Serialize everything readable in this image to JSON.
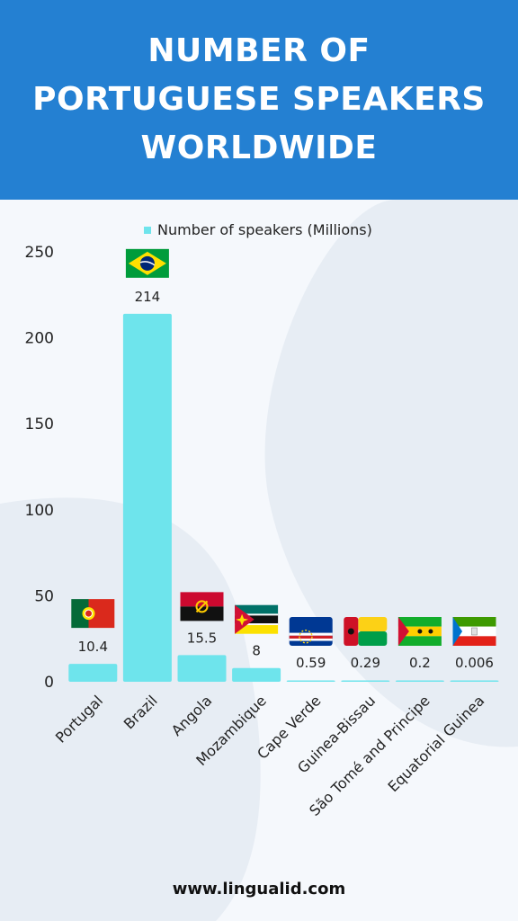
{
  "header": {
    "title": "NUMBER OF\nPORTUGUESE SPEAKERS\nWORLDWIDE"
  },
  "footer": {
    "url": "www.lingualid.com"
  },
  "colors": {
    "header_bg": "#2480d2",
    "bar": "#6ee4ec",
    "page_bg": "#f5f8fc"
  },
  "chart_data": {
    "type": "bar",
    "categories": [
      "Portugal",
      "Brazil",
      "Angola",
      "Mozambique",
      "Cape Verde",
      "Guinea-Bissau",
      "São Tomé and Principe",
      "Equatorial Guinea"
    ],
    "series": [
      {
        "name": "Number of speakers (Millions)",
        "values": [
          10.4,
          214,
          15.5,
          8,
          0.59,
          0.29,
          0.2,
          0.006
        ]
      }
    ],
    "data_labels": [
      "10.4",
      "214",
      "15.5",
      "8",
      "0.59",
      "0.29",
      "0.2",
      "0.006"
    ],
    "flags": [
      "portugal-flag",
      "brazil-flag",
      "angola-flag",
      "mozambique-flag",
      "cape-verde-flag",
      "guinea-bissau-flag",
      "sao-tome-flag",
      "equatorial-guinea-flag"
    ],
    "yticks": [
      "0",
      "50",
      "100",
      "150",
      "200",
      "250"
    ],
    "ylim": [
      0,
      250
    ],
    "legend_position": "top",
    "grid": false
  }
}
